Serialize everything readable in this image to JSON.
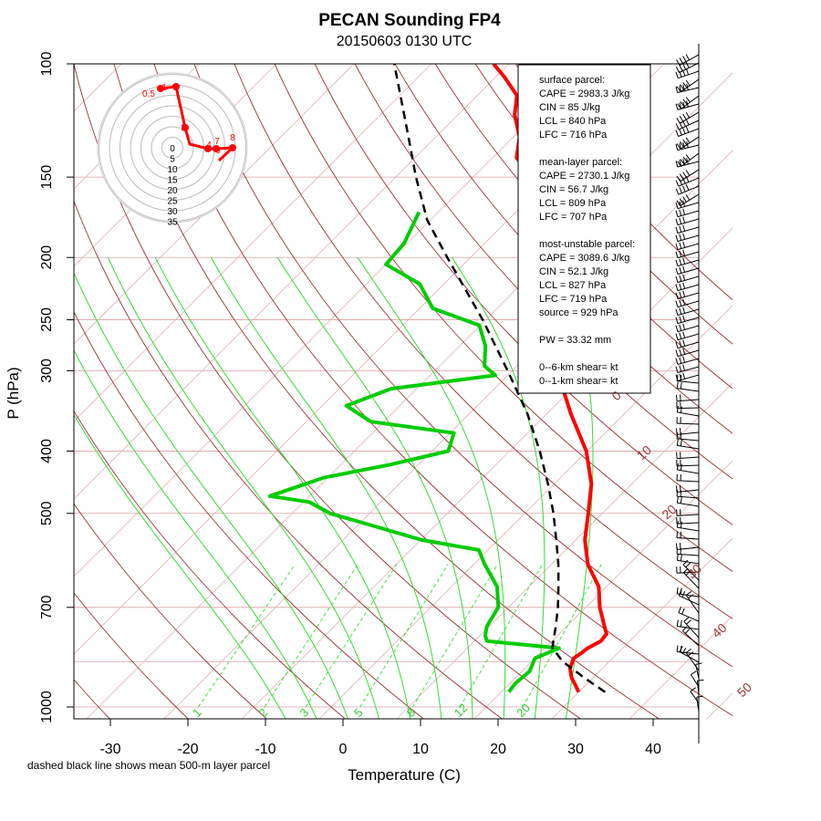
{
  "chart_data": {
    "type": "skew-t log-p sounding",
    "title": "PECAN Sounding FP4",
    "subtitle": "20150603 0130 UTC",
    "xlabel": "Temperature (C)",
    "ylabel": "P (hPa)",
    "note": "dashed black line shows mean 500-m layer parcel",
    "x_ticks": [
      -30,
      -20,
      -10,
      0,
      10,
      20,
      30,
      40
    ],
    "y_ticks": [
      100,
      150,
      200,
      250,
      300,
      400,
      500,
      700,
      1000
    ],
    "plim": [
      100,
      1040
    ],
    "dry_adiabat_labels": [
      0,
      10,
      20,
      30,
      40,
      50
    ],
    "mixing_ratio_labels": [
      1,
      2,
      3,
      5,
      8,
      12,
      20
    ],
    "info_box": [
      "surface parcel:",
      "CAPE = 2983.3 J/kg",
      "CIN = 85 J/kg",
      "LCL = 840 hPa",
      "LFC = 716 hPa",
      "",
      "mean-layer parcel:",
      "CAPE = 2730.1 J/kg",
      "CIN = 56.7 J/kg",
      "LCL = 809 hPa",
      "LFC = 707 hPa",
      "",
      "most-unstable parcel:",
      "CAPE = 3089.6 J/kg",
      "CIN = 52.1 J/kg",
      "LCL = 827 hPa",
      "LFC = 719 hPa",
      "source = 929 hPa",
      "",
      "PW =  33.32 mm",
      "",
      "0--6-km shear=  kt",
      "0--1-km shear=  kt"
    ],
    "hodograph": {
      "ring_labels": [
        "0",
        "5",
        "10",
        "15",
        "20",
        "25",
        "30",
        "35"
      ],
      "height_labels": [
        "0.5",
        "1",
        "2",
        "4",
        "6",
        "7",
        "8"
      ]
    },
    "series": [
      {
        "name": "temperature",
        "color": "#ff0000",
        "points": [
          {
            "p": 948,
            "t": 30.0
          },
          {
            "p": 925,
            "t": 28.7
          },
          {
            "p": 900,
            "t": 27.2
          },
          {
            "p": 870,
            "t": 25.8
          },
          {
            "p": 840,
            "t": 25.0
          },
          {
            "p": 825,
            "t": 25.3
          },
          {
            "p": 810,
            "t": 25.5
          },
          {
            "p": 790,
            "t": 26.3
          },
          {
            "p": 770,
            "t": 26.1
          },
          {
            "p": 745,
            "t": 24.6
          },
          {
            "p": 700,
            "t": 21.8
          },
          {
            "p": 650,
            "t": 19.0
          },
          {
            "p": 600,
            "t": 14.7
          },
          {
            "p": 550,
            "t": 11.2
          },
          {
            "p": 500,
            "t": 8.2
          },
          {
            "p": 450,
            "t": 4.8
          },
          {
            "p": 400,
            "t": -0.1
          },
          {
            "p": 350,
            "t": -6.9
          },
          {
            "p": 300,
            "t": -14.2
          },
          {
            "p": 270,
            "t": -18.6
          },
          {
            "p": 250,
            "t": -22.1
          },
          {
            "p": 235,
            "t": -25.5
          },
          {
            "p": 225,
            "t": -27.3
          },
          {
            "p": 200,
            "t": -32.3
          },
          {
            "p": 180,
            "t": -37.1
          },
          {
            "p": 165,
            "t": -39.6
          },
          {
            "p": 150,
            "t": -42.4
          },
          {
            "p": 140,
            "t": -46.9
          },
          {
            "p": 130,
            "t": -49.2
          },
          {
            "p": 120,
            "t": -52.7
          },
          {
            "p": 112,
            "t": -54.9
          },
          {
            "p": 105,
            "t": -58.8
          },
          {
            "p": 100,
            "t": -62.0
          }
        ]
      },
      {
        "name": "dewpoint",
        "color": "#00cc00",
        "points": [
          {
            "p": 948,
            "t": 21.0
          },
          {
            "p": 920,
            "t": 20.7
          },
          {
            "p": 880,
            "t": 21.0
          },
          {
            "p": 840,
            "t": 20.0
          },
          {
            "p": 810,
            "t": 21.8
          },
          {
            "p": 790,
            "t": 11.6
          },
          {
            "p": 775,
            "t": 10.7
          },
          {
            "p": 750,
            "t": 9.7
          },
          {
            "p": 700,
            "t": 8.7
          },
          {
            "p": 650,
            "t": 5.9
          },
          {
            "p": 600,
            "t": 1.4
          },
          {
            "p": 570,
            "t": -1.2
          },
          {
            "p": 550,
            "t": -9.8
          },
          {
            "p": 500,
            "t": -25.1
          },
          {
            "p": 480,
            "t": -29.3
          },
          {
            "p": 470,
            "t": -35.1
          },
          {
            "p": 440,
            "t": -30.5
          },
          {
            "p": 420,
            "t": -23.7
          },
          {
            "p": 400,
            "t": -17.9
          },
          {
            "p": 375,
            "t": -19.5
          },
          {
            "p": 360,
            "t": -31.7
          },
          {
            "p": 340,
            "t": -36.9
          },
          {
            "p": 320,
            "t": -33.3
          },
          {
            "p": 305,
            "t": -21.6
          },
          {
            "p": 295,
            "t": -24.2
          },
          {
            "p": 275,
            "t": -26.6
          },
          {
            "p": 255,
            "t": -30.1
          },
          {
            "p": 240,
            "t": -38.3
          },
          {
            "p": 220,
            "t": -43.1
          },
          {
            "p": 205,
            "t": -50.0
          },
          {
            "p": 190,
            "t": -50.4
          },
          {
            "p": 170,
            "t": -52.5
          }
        ]
      },
      {
        "name": "mean 500-m layer parcel",
        "color": "#000000",
        "style": "dashed",
        "points": [
          {
            "p": 948,
            "t": 33.4
          },
          {
            "p": 900,
            "t": 28.8
          },
          {
            "p": 850,
            "t": 24.0
          },
          {
            "p": 809,
            "t": 20.9
          },
          {
            "p": 750,
            "t": 18.6
          },
          {
            "p": 700,
            "t": 16.4
          },
          {
            "p": 650,
            "t": 13.8
          },
          {
            "p": 600,
            "t": 10.9
          },
          {
            "p": 550,
            "t": 7.5
          },
          {
            "p": 500,
            "t": 3.7
          },
          {
            "p": 450,
            "t": -0.8
          },
          {
            "p": 400,
            "t": -6.1
          },
          {
            "p": 350,
            "t": -12.5
          },
          {
            "p": 300,
            "t": -20.6
          },
          {
            "p": 250,
            "t": -30.4
          },
          {
            "p": 200,
            "t": -43.0
          },
          {
            "p": 175,
            "t": -50.4
          },
          {
            "p": 150,
            "t": -57.4
          },
          {
            "p": 125,
            "t": -65.2
          },
          {
            "p": 100,
            "t": -74.8
          }
        ]
      }
    ]
  }
}
